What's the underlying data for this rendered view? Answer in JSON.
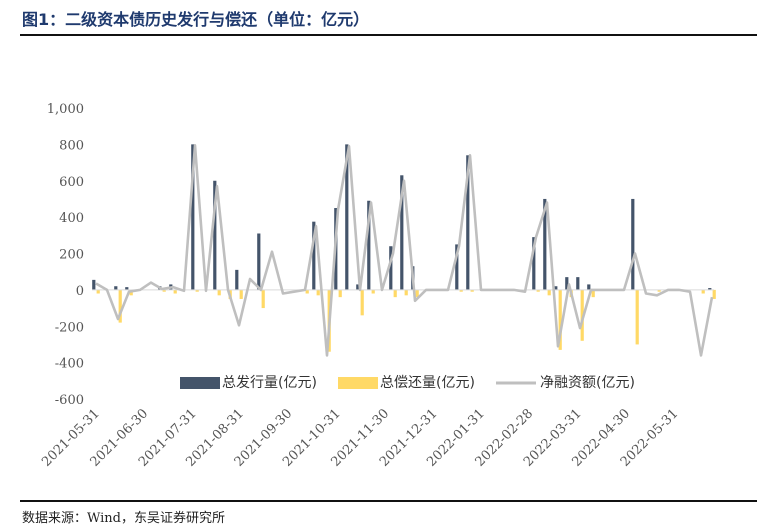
{
  "header": {
    "title": "图1：二级资本债历史发行与偿还（单位：亿元）"
  },
  "footer": {
    "source": "数据来源：Wind，东吴证券研究所"
  },
  "colors": {
    "issue": "#44546a",
    "repay": "#ffd966",
    "net": "#bfbfbf",
    "title": "#1f3a6e"
  },
  "chart_data": {
    "type": "bar",
    "title": "二级资本债历史发行与偿还（单位：亿元）",
    "xlabel": "",
    "ylabel": "",
    "ylim": [
      -600,
      1000
    ],
    "yticks": [
      -600,
      -400,
      -200,
      0,
      200,
      400,
      600,
      800,
      1000
    ],
    "ytick_labels": [
      "-600",
      "-400",
      "-200",
      "0",
      "200",
      "400",
      "600",
      "800",
      "1,000"
    ],
    "x_tick_labels": [
      "2021-05-31",
      "2021-06-30",
      "2021-07-31",
      "2021-08-31",
      "2021-09-30",
      "2021-10-31",
      "2021-11-30",
      "2021-12-31",
      "2022-01-31",
      "2022-02-28",
      "2022-03-31",
      "2022-04-30",
      "2022-05-31"
    ],
    "x_tick_positions": [
      0,
      4.4,
      8.8,
      13.1,
      17.5,
      21.9,
      26.3,
      30.7,
      35.0,
      39.4,
      43.8,
      48.2,
      52.6
    ],
    "legend_position": "bottom-center",
    "series": [
      {
        "name": "总发行量(亿元)",
        "kind": "bar",
        "values": [
          55,
          0,
          20,
          15,
          0,
          0,
          20,
          30,
          0,
          800,
          0,
          600,
          0,
          110,
          0,
          310,
          0,
          0,
          0,
          0,
          375,
          0,
          450,
          800,
          30,
          490,
          0,
          240,
          630,
          130,
          0,
          0,
          0,
          250,
          740,
          0,
          0,
          0,
          0,
          0,
          290,
          500,
          20,
          70,
          70,
          30,
          0,
          0,
          0,
          500,
          0,
          0,
          0,
          0,
          0,
          0,
          10
        ]
      },
      {
        "name": "总偿还量(亿元)",
        "kind": "bar",
        "values": [
          -20,
          0,
          -180,
          -30,
          0,
          0,
          -10,
          -20,
          0,
          -10,
          0,
          -30,
          -50,
          -50,
          0,
          -100,
          0,
          0,
          0,
          -20,
          -30,
          -340,
          -40,
          0,
          -140,
          -20,
          0,
          -40,
          -30,
          -40,
          0,
          0,
          0,
          -10,
          -10,
          0,
          0,
          0,
          0,
          0,
          -10,
          -30,
          -330,
          -40,
          -280,
          -40,
          0,
          0,
          0,
          -300,
          0,
          -10,
          0,
          0,
          0,
          -20,
          -50
        ]
      },
      {
        "name": "净融资额(亿元)",
        "kind": "line",
        "values": [
          35,
          0,
          -160,
          -10,
          0,
          40,
          5,
          15,
          -5,
          795,
          -5,
          570,
          0,
          -195,
          60,
          0,
          210,
          -20,
          -10,
          0,
          350,
          -360,
          440,
          790,
          0,
          480,
          0,
          200,
          600,
          -60,
          0,
          0,
          0,
          240,
          740,
          0,
          0,
          0,
          0,
          -10,
          290,
          480,
          -310,
          30,
          -210,
          0,
          0,
          0,
          0,
          200,
          -20,
          -30,
          0,
          0,
          -10,
          -360,
          -40
        ]
      }
    ]
  }
}
